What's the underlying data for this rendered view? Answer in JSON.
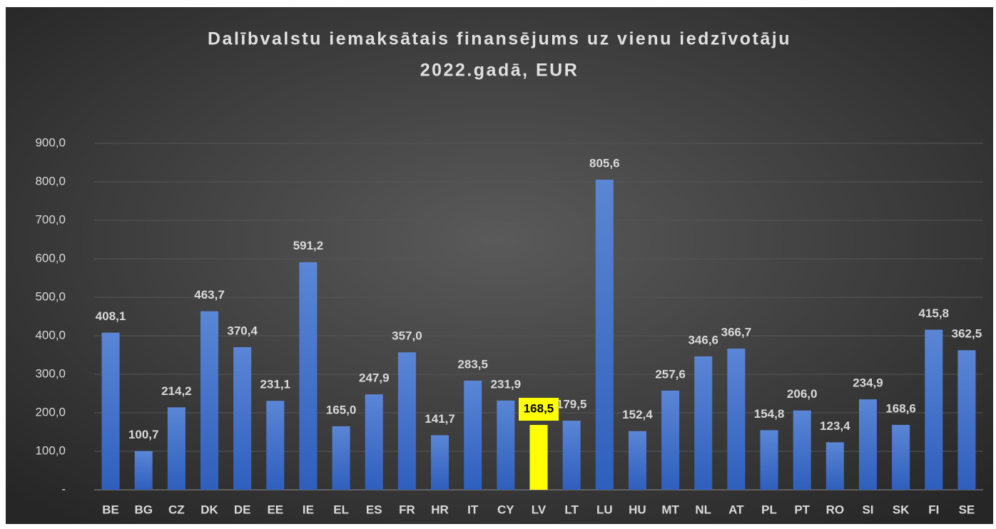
{
  "chart_data": {
    "type": "bar",
    "title": [
      "Dalībvalstu iemaksātais finansējums uz vienu iedzīvotāju",
      "2022.gadā, EUR"
    ],
    "categories": [
      "BE",
      "BG",
      "CZ",
      "DK",
      "DE",
      "EE",
      "IE",
      "EL",
      "ES",
      "FR",
      "HR",
      "IT",
      "CY",
      "LV",
      "LT",
      "LU",
      "HU",
      "MT",
      "NL",
      "AT",
      "PL",
      "PT",
      "RO",
      "SI",
      "SK",
      "FI",
      "SE"
    ],
    "values": [
      408.1,
      100.7,
      214.2,
      463.7,
      370.4,
      231.1,
      591.2,
      165.0,
      247.9,
      357.0,
      141.7,
      283.5,
      231.9,
      168.5,
      179.5,
      805.6,
      152.4,
      257.6,
      346.6,
      366.7,
      154.8,
      206.0,
      123.4,
      234.9,
      168.6,
      415.8,
      362.5
    ],
    "value_labels": [
      "408,1",
      "100,7",
      "214,2",
      "463,7",
      "370,4",
      "231,1",
      "591,2",
      "165,0",
      "247,9",
      "357,0",
      "141,7",
      "283,5",
      "231,9",
      "168,5",
      "179,5",
      "805,6",
      "152,4",
      "257,6",
      "346,6",
      "366,7",
      "154,8",
      "206,0",
      "123,4",
      "234,9",
      "168,6",
      "415,8",
      "362,5"
    ],
    "color": "#4472c4",
    "colors": [
      "#4472c4",
      "#4472c4",
      "#4472c4",
      "#4472c4",
      "#4472c4",
      "#4472c4",
      "#4472c4",
      "#4472c4",
      "#4472c4",
      "#4472c4",
      "#4472c4",
      "#4472c4",
      "#4472c4",
      "#ffff00",
      "#4472c4",
      "#4472c4",
      "#4472c4",
      "#4472c4",
      "#4472c4",
      "#4472c4",
      "#4472c4",
      "#4472c4",
      "#4472c4",
      "#4472c4",
      "#4472c4",
      "#4472c4",
      "#4472c4"
    ],
    "ylim": [
      0,
      900
    ],
    "yticks": [
      {
        "value": 0,
        "label": "-"
      },
      {
        "value": 100,
        "label": "100,0"
      },
      {
        "value": 200,
        "label": "200,0"
      },
      {
        "value": 300,
        "label": "300,0"
      },
      {
        "value": 400,
        "label": "400,0"
      },
      {
        "value": 500,
        "label": "500,0"
      },
      {
        "value": 600,
        "label": "600,0"
      },
      {
        "value": 700,
        "label": "700,0"
      },
      {
        "value": 800,
        "label": "800,0"
      },
      {
        "value": 900,
        "label": "900,0"
      }
    ],
    "grid": true
  }
}
